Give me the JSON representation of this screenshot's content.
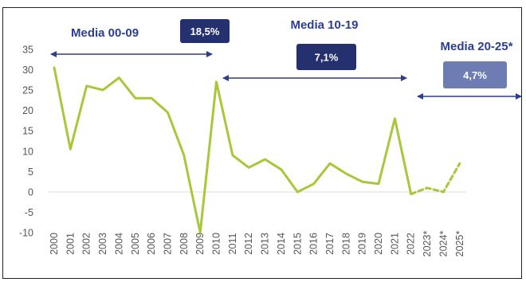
{
  "chart_data": {
    "type": "line",
    "title": "",
    "xlabel": "",
    "ylabel": "",
    "ylim": [
      -10,
      35
    ],
    "grid": false,
    "x": [
      "2000",
      "2001",
      "2002",
      "2003",
      "2004",
      "2005",
      "2006",
      "2007",
      "2008",
      "2009",
      "2010",
      "2011",
      "2012",
      "2013",
      "2014",
      "2015",
      "2016",
      "2017",
      "2018",
      "2019",
      "2020",
      "2021",
      "2022",
      "2023*",
      "2024*",
      "2025*"
    ],
    "y_ticks": [
      35,
      30,
      25,
      20,
      15,
      10,
      5,
      0,
      -5,
      -10
    ],
    "series": [
      {
        "name": "",
        "color": "#a8c83a",
        "actual": [
          30.5,
          10.5,
          26,
          25,
          28,
          23,
          23,
          19.5,
          9,
          -10,
          27,
          9,
          6,
          8,
          5.5,
          0,
          2,
          7,
          4.5,
          2.5,
          2,
          18,
          -0.5
        ],
        "forecast": [
          -0.5,
          1,
          0,
          7
        ]
      }
    ],
    "annotations": [
      {
        "label": "Media 00-09",
        "value": "18,5%",
        "from": "2000",
        "to": "2009",
        "badge_color": "#25306e"
      },
      {
        "label": "Media 10-19",
        "value": "7,1%",
        "from": "2010",
        "to": "2020",
        "badge_color": "#25306e"
      },
      {
        "label": "Media 20-25*",
        "value": "4,7%",
        "from": "2021",
        "to": "2025*",
        "badge_color": "#6e7cb4"
      }
    ],
    "zero_line_color": "#dddddd",
    "arrow_color": "#2b3f8c"
  }
}
